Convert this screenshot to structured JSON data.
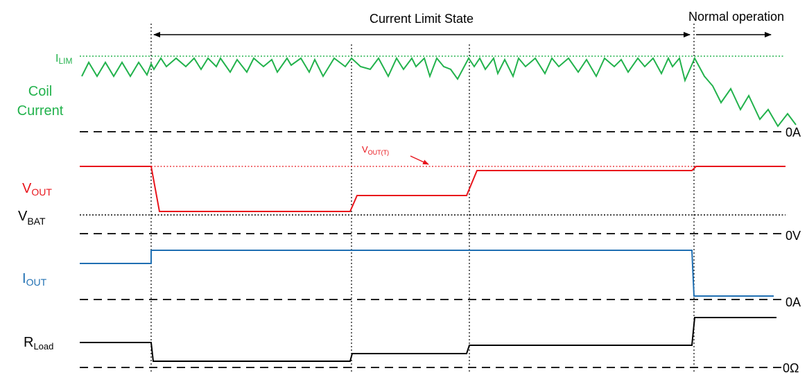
{
  "header": {
    "current_limit_state": "Current Limit State",
    "normal_operation": "Normal operation"
  },
  "labels": {
    "ilim_main": "I",
    "ilim_sub": "LIM",
    "coil_line1": "Coil",
    "coil_line2": "Current",
    "vout_main": "V",
    "vout_sub": "OUT",
    "vbat_main": "V",
    "vbat_sub": "BAT",
    "iout_main": "I",
    "iout_sub": "OUT",
    "rload_main": "R",
    "rload_sub": "Load",
    "voutt_main": "V",
    "voutt_sub": "OUT(T)"
  },
  "zero_labels": {
    "coil_zero": "0A",
    "vout_zero": "0V",
    "iout_zero": "0A",
    "rload_zero": "0Ω"
  },
  "colors": {
    "coil": "#22b24c",
    "vout": "#e8141b",
    "iout": "#1f6fb2",
    "rload": "#000000",
    "guides": "#000000"
  }
}
